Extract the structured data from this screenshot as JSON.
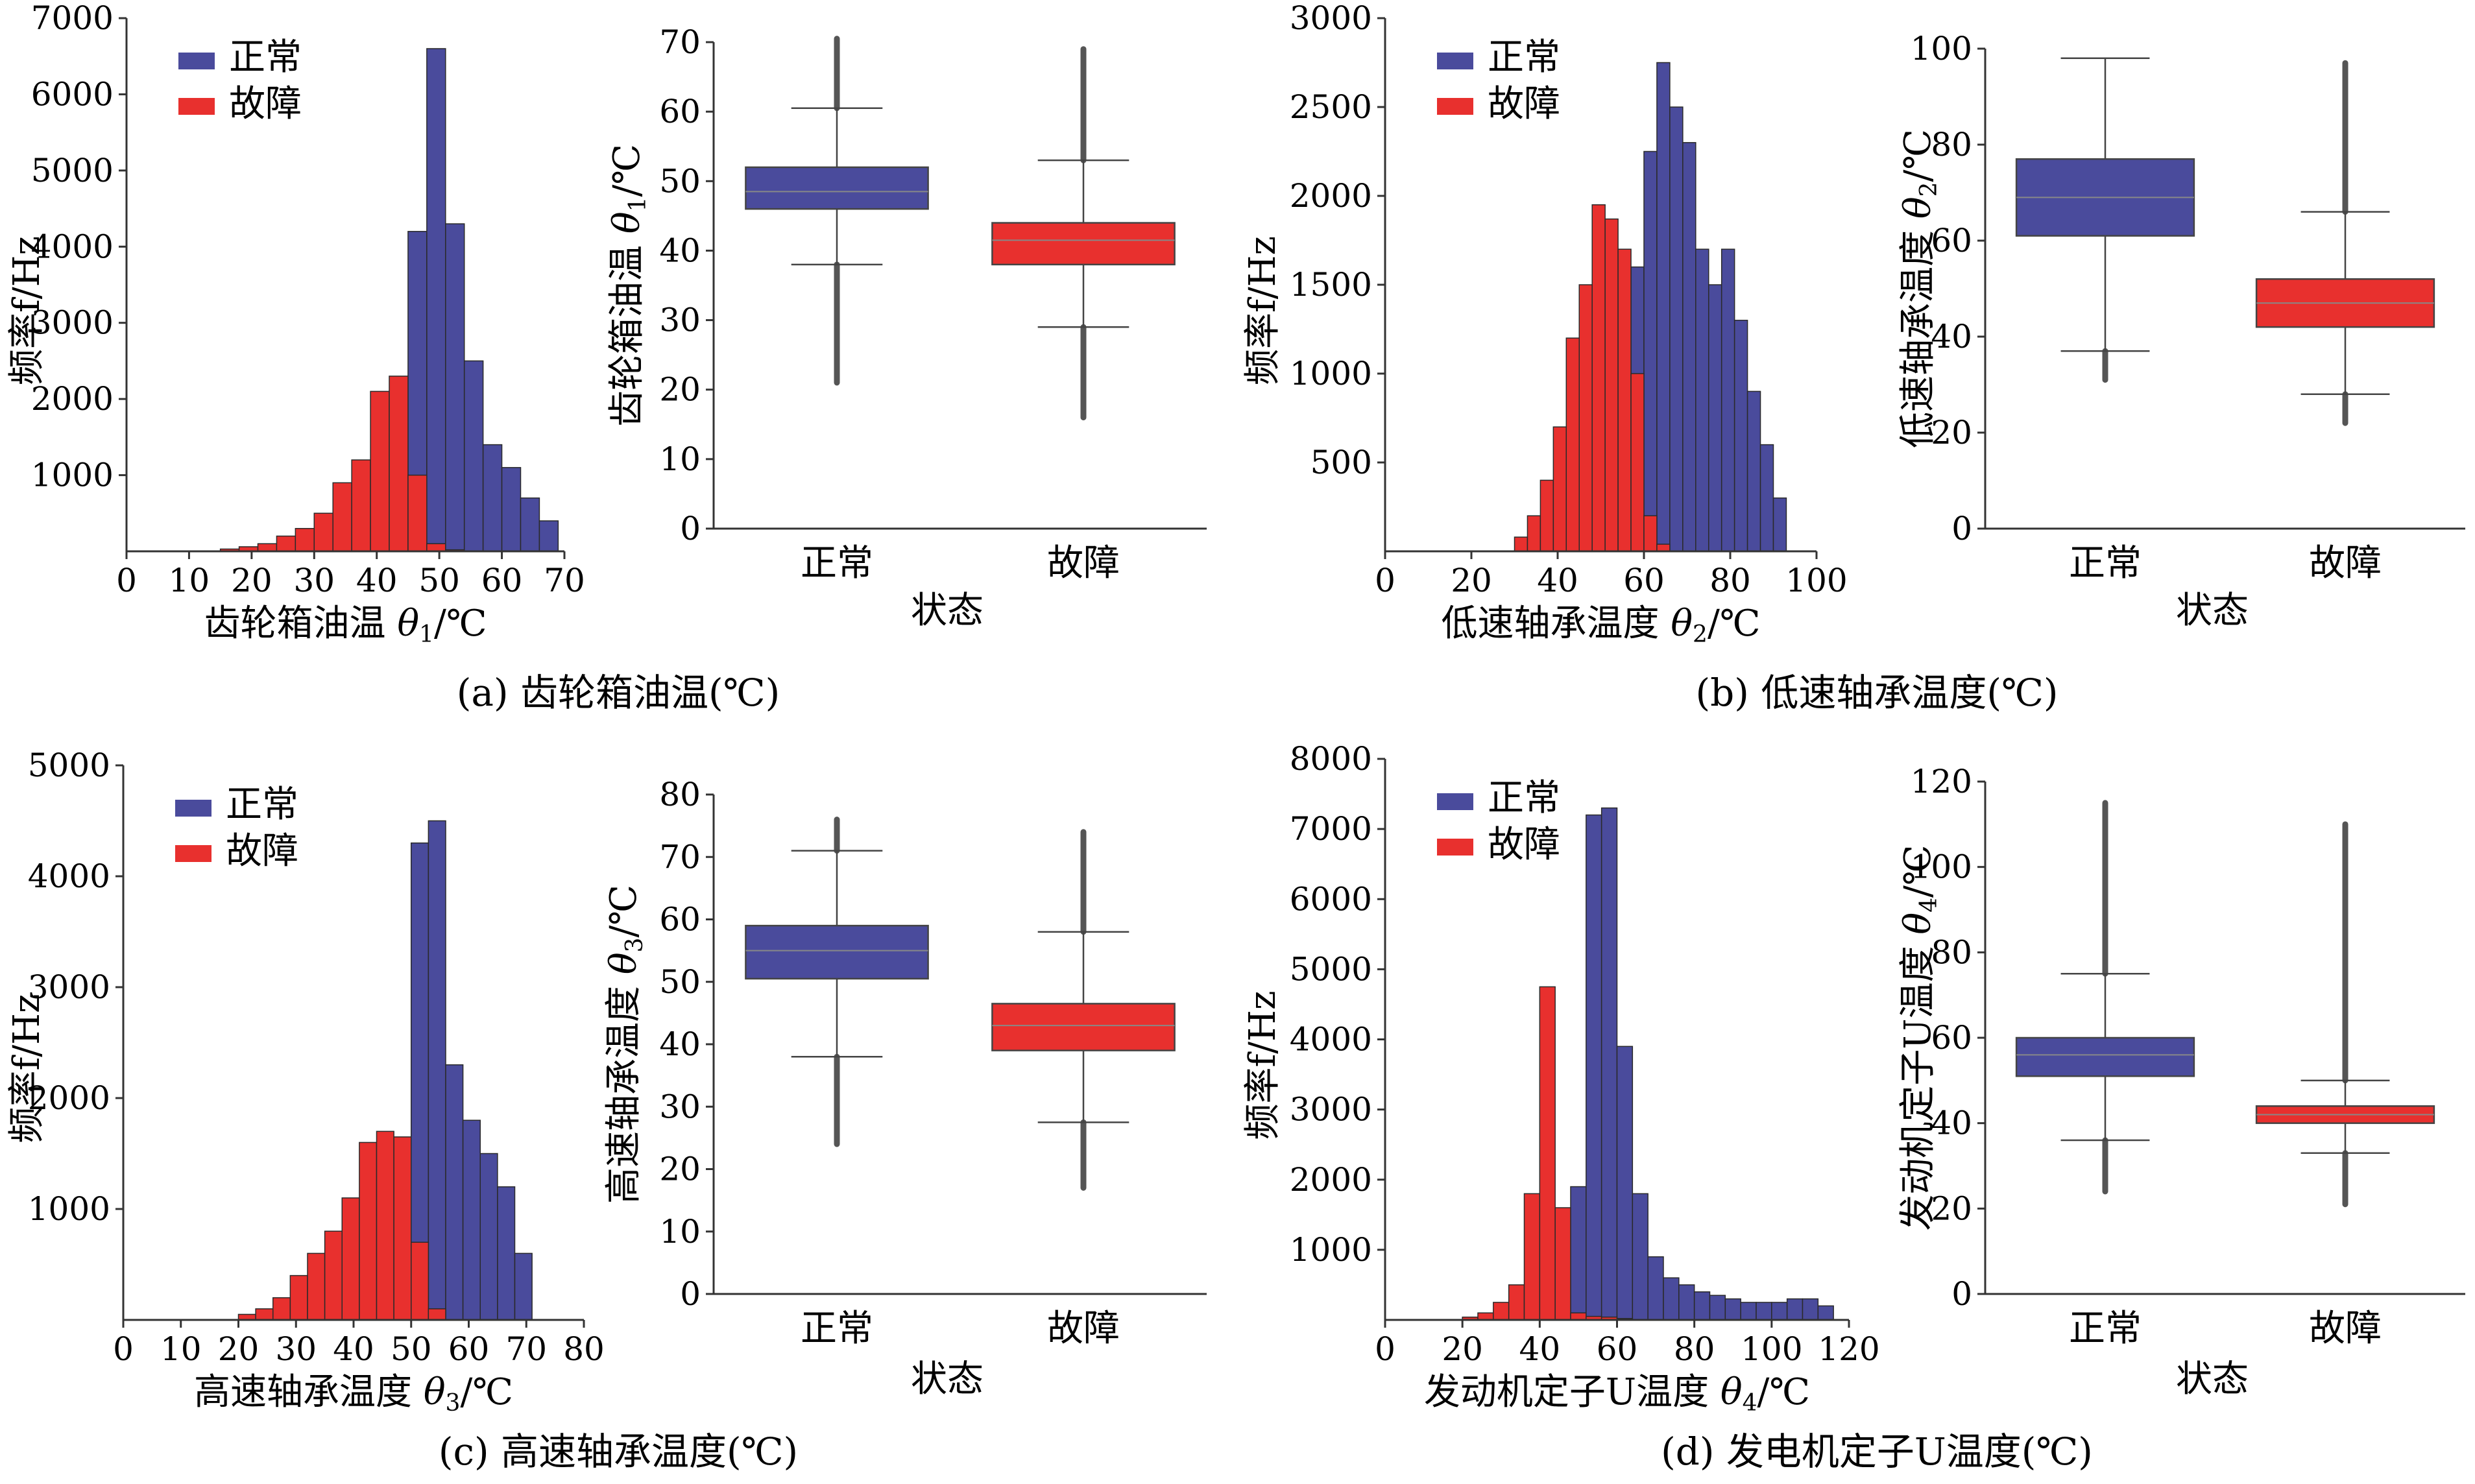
{
  "colors": {
    "normal": "#4a4b9c",
    "fault": "#e8302e",
    "edge": "#2a2a2a",
    "axis": "#333333"
  },
  "legend": {
    "normal": "正常",
    "fault": "故障"
  },
  "captions": [
    "(a) 齿轮箱油温(℃)",
    "(b) 低速轴承温度(℃)",
    "(c) 高速轴承温度(℃)",
    "(d) 发电机定子U温度(℃)"
  ],
  "chart_data": [
    {
      "id": "hist-a",
      "type": "bar",
      "xlabel": "齿轮箱油温 θ1/℃",
      "ylabel": "频率f/Hz",
      "xlim": [
        0,
        70
      ],
      "ylim": [
        0,
        7000
      ],
      "xticks": [
        "0",
        "10",
        "20",
        "30",
        "40",
        "50",
        "60",
        "70"
      ],
      "yticks": [
        "1000",
        "2000",
        "3000",
        "4000",
        "5000",
        "6000",
        "7000"
      ],
      "bins": [
        [
          15,
          18
        ],
        [
          18,
          21
        ],
        [
          21,
          24
        ],
        [
          24,
          27
        ],
        [
          27,
          30
        ],
        [
          30,
          33
        ],
        [
          33,
          36
        ],
        [
          36,
          39
        ],
        [
          39,
          42
        ],
        [
          42,
          45
        ],
        [
          45,
          48
        ],
        [
          48,
          51
        ],
        [
          51,
          54
        ],
        [
          54,
          57
        ],
        [
          57,
          60
        ],
        [
          60,
          63
        ],
        [
          63,
          66
        ],
        [
          66,
          69
        ]
      ],
      "series": [
        {
          "name": "正常",
          "values": [
            0,
            0,
            10,
            20,
            40,
            80,
            150,
            250,
            400,
            1200,
            4200,
            6600,
            4300,
            2500,
            1400,
            1100,
            700,
            400
          ]
        },
        {
          "name": "故障",
          "values": [
            30,
            60,
            100,
            200,
            300,
            500,
            900,
            1200,
            2100,
            2300,
            1000,
            100,
            20,
            0,
            0,
            0,
            0,
            0
          ]
        }
      ]
    },
    {
      "id": "box-a",
      "type": "box",
      "xlabel": "状态",
      "ylabel": "齿轮箱油温 θ1/℃",
      "ylim": [
        0,
        70
      ],
      "categories": [
        "正常",
        "故障"
      ],
      "yticks": [
        "0",
        "10",
        "20",
        "30",
        "40",
        "50",
        "60",
        "70"
      ],
      "boxes": [
        {
          "whisker_low": 38,
          "q1": 46,
          "median": 48.5,
          "q3": 52,
          "whisker_high": 60.5,
          "outlier_low": 21,
          "outlier_high": 70.5
        },
        {
          "whisker_low": 29,
          "q1": 38,
          "median": 41.5,
          "q3": 44,
          "whisker_high": 53,
          "outlier_low": 16,
          "outlier_high": 69
        }
      ]
    },
    {
      "id": "hist-b",
      "type": "bar",
      "xlabel": "低速轴承温度 θ2/℃",
      "ylabel": "频率f/Hz",
      "xlim": [
        0,
        100
      ],
      "ylim": [
        0,
        3000
      ],
      "xticks": [
        "0",
        "20",
        "40",
        "60",
        "80",
        "100"
      ],
      "yticks": [
        "500",
        "1000",
        "1500",
        "2000",
        "2500",
        "3000"
      ],
      "bins": [
        [
          30,
          33
        ],
        [
          33,
          36
        ],
        [
          36,
          39
        ],
        [
          39,
          42
        ],
        [
          42,
          45
        ],
        [
          45,
          48
        ],
        [
          48,
          51
        ],
        [
          51,
          54
        ],
        [
          54,
          57
        ],
        [
          57,
          60
        ],
        [
          60,
          63
        ],
        [
          63,
          66
        ],
        [
          66,
          69
        ],
        [
          69,
          72
        ],
        [
          72,
          75
        ],
        [
          75,
          78
        ],
        [
          78,
          81
        ],
        [
          81,
          84
        ],
        [
          84,
          87
        ],
        [
          87,
          90
        ],
        [
          90,
          93
        ]
      ],
      "series": [
        {
          "name": "正常",
          "values": [
            0,
            0,
            0,
            0,
            0,
            10,
            50,
            200,
            700,
            1600,
            2250,
            2750,
            2500,
            2300,
            1700,
            1500,
            1700,
            1300,
            900,
            600,
            300
          ]
        },
        {
          "name": "故障",
          "values": [
            80,
            200,
            400,
            700,
            1200,
            1500,
            1950,
            1870,
            1700,
            1000,
            200,
            40,
            0,
            0,
            0,
            0,
            0,
            0,
            0,
            0,
            0
          ]
        }
      ]
    },
    {
      "id": "box-b",
      "type": "box",
      "xlabel": "状态",
      "ylabel": "低速轴承温度 θ2/℃",
      "ylim": [
        0,
        100
      ],
      "categories": [
        "正常",
        "故障"
      ],
      "yticks": [
        "0",
        "20",
        "40",
        "60",
        "80",
        "100"
      ],
      "boxes": [
        {
          "whisker_low": 37,
          "q1": 61,
          "median": 69,
          "q3": 77,
          "whisker_high": 98,
          "outlier_low": 31,
          "outlier_high": null
        },
        {
          "whisker_low": 28,
          "q1": 42,
          "median": 47,
          "q3": 52,
          "whisker_high": 66,
          "outlier_low": 22,
          "outlier_high": 97
        }
      ]
    },
    {
      "id": "hist-c",
      "type": "bar",
      "xlabel": "高速轴承温度 θ3/℃",
      "ylabel": "频率f/Hz",
      "xlim": [
        0,
        80
      ],
      "ylim": [
        0,
        5000
      ],
      "xticks": [
        "0",
        "10",
        "20",
        "30",
        "40",
        "50",
        "60",
        "70",
        "80"
      ],
      "yticks": [
        "1000",
        "2000",
        "3000",
        "4000",
        "5000"
      ],
      "bins": [
        [
          20,
          23
        ],
        [
          23,
          26
        ],
        [
          26,
          29
        ],
        [
          29,
          32
        ],
        [
          32,
          35
        ],
        [
          35,
          38
        ],
        [
          38,
          41
        ],
        [
          41,
          44
        ],
        [
          44,
          47
        ],
        [
          47,
          50
        ],
        [
          50,
          53
        ],
        [
          53,
          56
        ],
        [
          56,
          59
        ],
        [
          59,
          62
        ],
        [
          62,
          65
        ],
        [
          65,
          68
        ],
        [
          68,
          71
        ]
      ],
      "series": [
        {
          "name": "正常",
          "values": [
            0,
            0,
            0,
            0,
            0,
            0,
            100,
            300,
            700,
            1400,
            4300,
            4500,
            2300,
            1800,
            1500,
            1200,
            600
          ]
        },
        {
          "name": "故障",
          "values": [
            50,
            100,
            200,
            400,
            600,
            800,
            1100,
            1600,
            1700,
            1650,
            700,
            100,
            0,
            0,
            0,
            0,
            0
          ]
        }
      ]
    },
    {
      "id": "box-c",
      "type": "box",
      "xlabel": "状态",
      "ylabel": "高速轴承温度 θ3/℃",
      "ylim": [
        0,
        80
      ],
      "categories": [
        "正常",
        "故障"
      ],
      "yticks": [
        "0",
        "10",
        "20",
        "30",
        "40",
        "50",
        "60",
        "70",
        "80"
      ],
      "boxes": [
        {
          "whisker_low": 38,
          "q1": 50.5,
          "median": 55,
          "q3": 59,
          "whisker_high": 71,
          "outlier_low": 24,
          "outlier_high": 76
        },
        {
          "whisker_low": 27.5,
          "q1": 39,
          "median": 43,
          "q3": 46.5,
          "whisker_high": 58,
          "outlier_low": 17,
          "outlier_high": 74
        }
      ]
    },
    {
      "id": "hist-d",
      "type": "bar",
      "xlabel": "发动机定子U温度 θ4/℃",
      "ylabel": "频率f/Hz",
      "xlim": [
        0,
        120
      ],
      "ylim": [
        0,
        8000
      ],
      "xticks": [
        "0",
        "20",
        "40",
        "60",
        "80",
        "100",
        "120"
      ],
      "yticks": [
        "1000",
        "2000",
        "3000",
        "4000",
        "5000",
        "6000",
        "7000",
        "8000"
      ],
      "bins": [
        [
          20,
          24
        ],
        [
          24,
          28
        ],
        [
          28,
          32
        ],
        [
          32,
          36
        ],
        [
          36,
          40
        ],
        [
          40,
          44
        ],
        [
          44,
          48
        ],
        [
          48,
          52
        ],
        [
          52,
          56
        ],
        [
          56,
          60
        ],
        [
          60,
          64
        ],
        [
          64,
          68
        ],
        [
          68,
          72
        ],
        [
          72,
          76
        ],
        [
          76,
          80
        ],
        [
          80,
          84
        ],
        [
          84,
          88
        ],
        [
          88,
          92
        ],
        [
          92,
          96
        ],
        [
          96,
          100
        ],
        [
          100,
          104
        ],
        [
          104,
          108
        ],
        [
          108,
          112
        ],
        [
          112,
          116
        ]
      ],
      "series": [
        {
          "name": "正常",
          "values": [
            0,
            0,
            0,
            0,
            0,
            0,
            200,
            1900,
            7200,
            7300,
            3900,
            1800,
            900,
            600,
            500,
            400,
            350,
            300,
            250,
            250,
            250,
            300,
            300,
            200
          ]
        },
        {
          "name": "故障",
          "values": [
            40,
            100,
            250,
            500,
            1800,
            4750,
            1600,
            100,
            50,
            40,
            20,
            0,
            0,
            0,
            0,
            0,
            0,
            0,
            0,
            0,
            0,
            0,
            0,
            0
          ]
        }
      ]
    },
    {
      "id": "box-d",
      "type": "box",
      "xlabel": "状态",
      "ylabel": "发动机定子U温度 θ4/℃",
      "ylim": [
        0,
        120
      ],
      "categories": [
        "正常",
        "故障"
      ],
      "yticks": [
        "0",
        "20",
        "40",
        "60",
        "80",
        "100",
        "120"
      ],
      "boxes": [
        {
          "whisker_low": 36,
          "q1": 51,
          "median": 56,
          "q3": 60,
          "whisker_high": 75,
          "outlier_low": 24,
          "outlier_high": 115
        },
        {
          "whisker_low": 33,
          "q1": 40,
          "median": 42,
          "q3": 44,
          "whisker_high": 50,
          "outlier_low": 21,
          "outlier_high": 110
        }
      ]
    }
  ]
}
